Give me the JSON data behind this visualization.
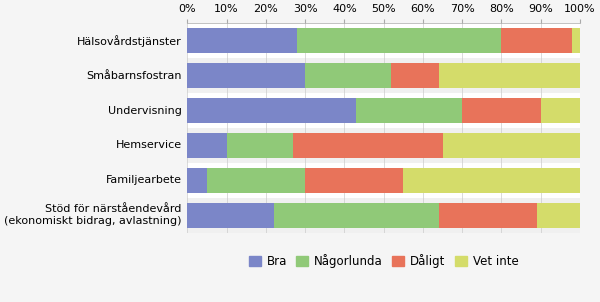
{
  "categories": [
    "Hälsovårdstjänster",
    "Småbarnsfostran",
    "Undervisning",
    "Hemservice",
    "Familjearbete",
    "Stöd för närståendevård\n(ekonomiskt bidrag, avlastning)"
  ],
  "series": {
    "Bra": [
      28,
      30,
      43,
      10,
      5,
      22
    ],
    "Någorlunda": [
      52,
      22,
      27,
      17,
      25,
      42
    ],
    "Dåligt": [
      18,
      12,
      20,
      38,
      25,
      25
    ],
    "Vet inte": [
      2,
      36,
      10,
      35,
      45,
      11
    ]
  },
  "colors": {
    "Bra": "#7b86c8",
    "Någorlunda": "#90c978",
    "Dåligt": "#e8735a",
    "Vet inte": "#d4dc6a"
  },
  "bg_odd": "#f0f0f0",
  "bg_even": "#ffffff",
  "fig_bg": "#f5f5f5"
}
